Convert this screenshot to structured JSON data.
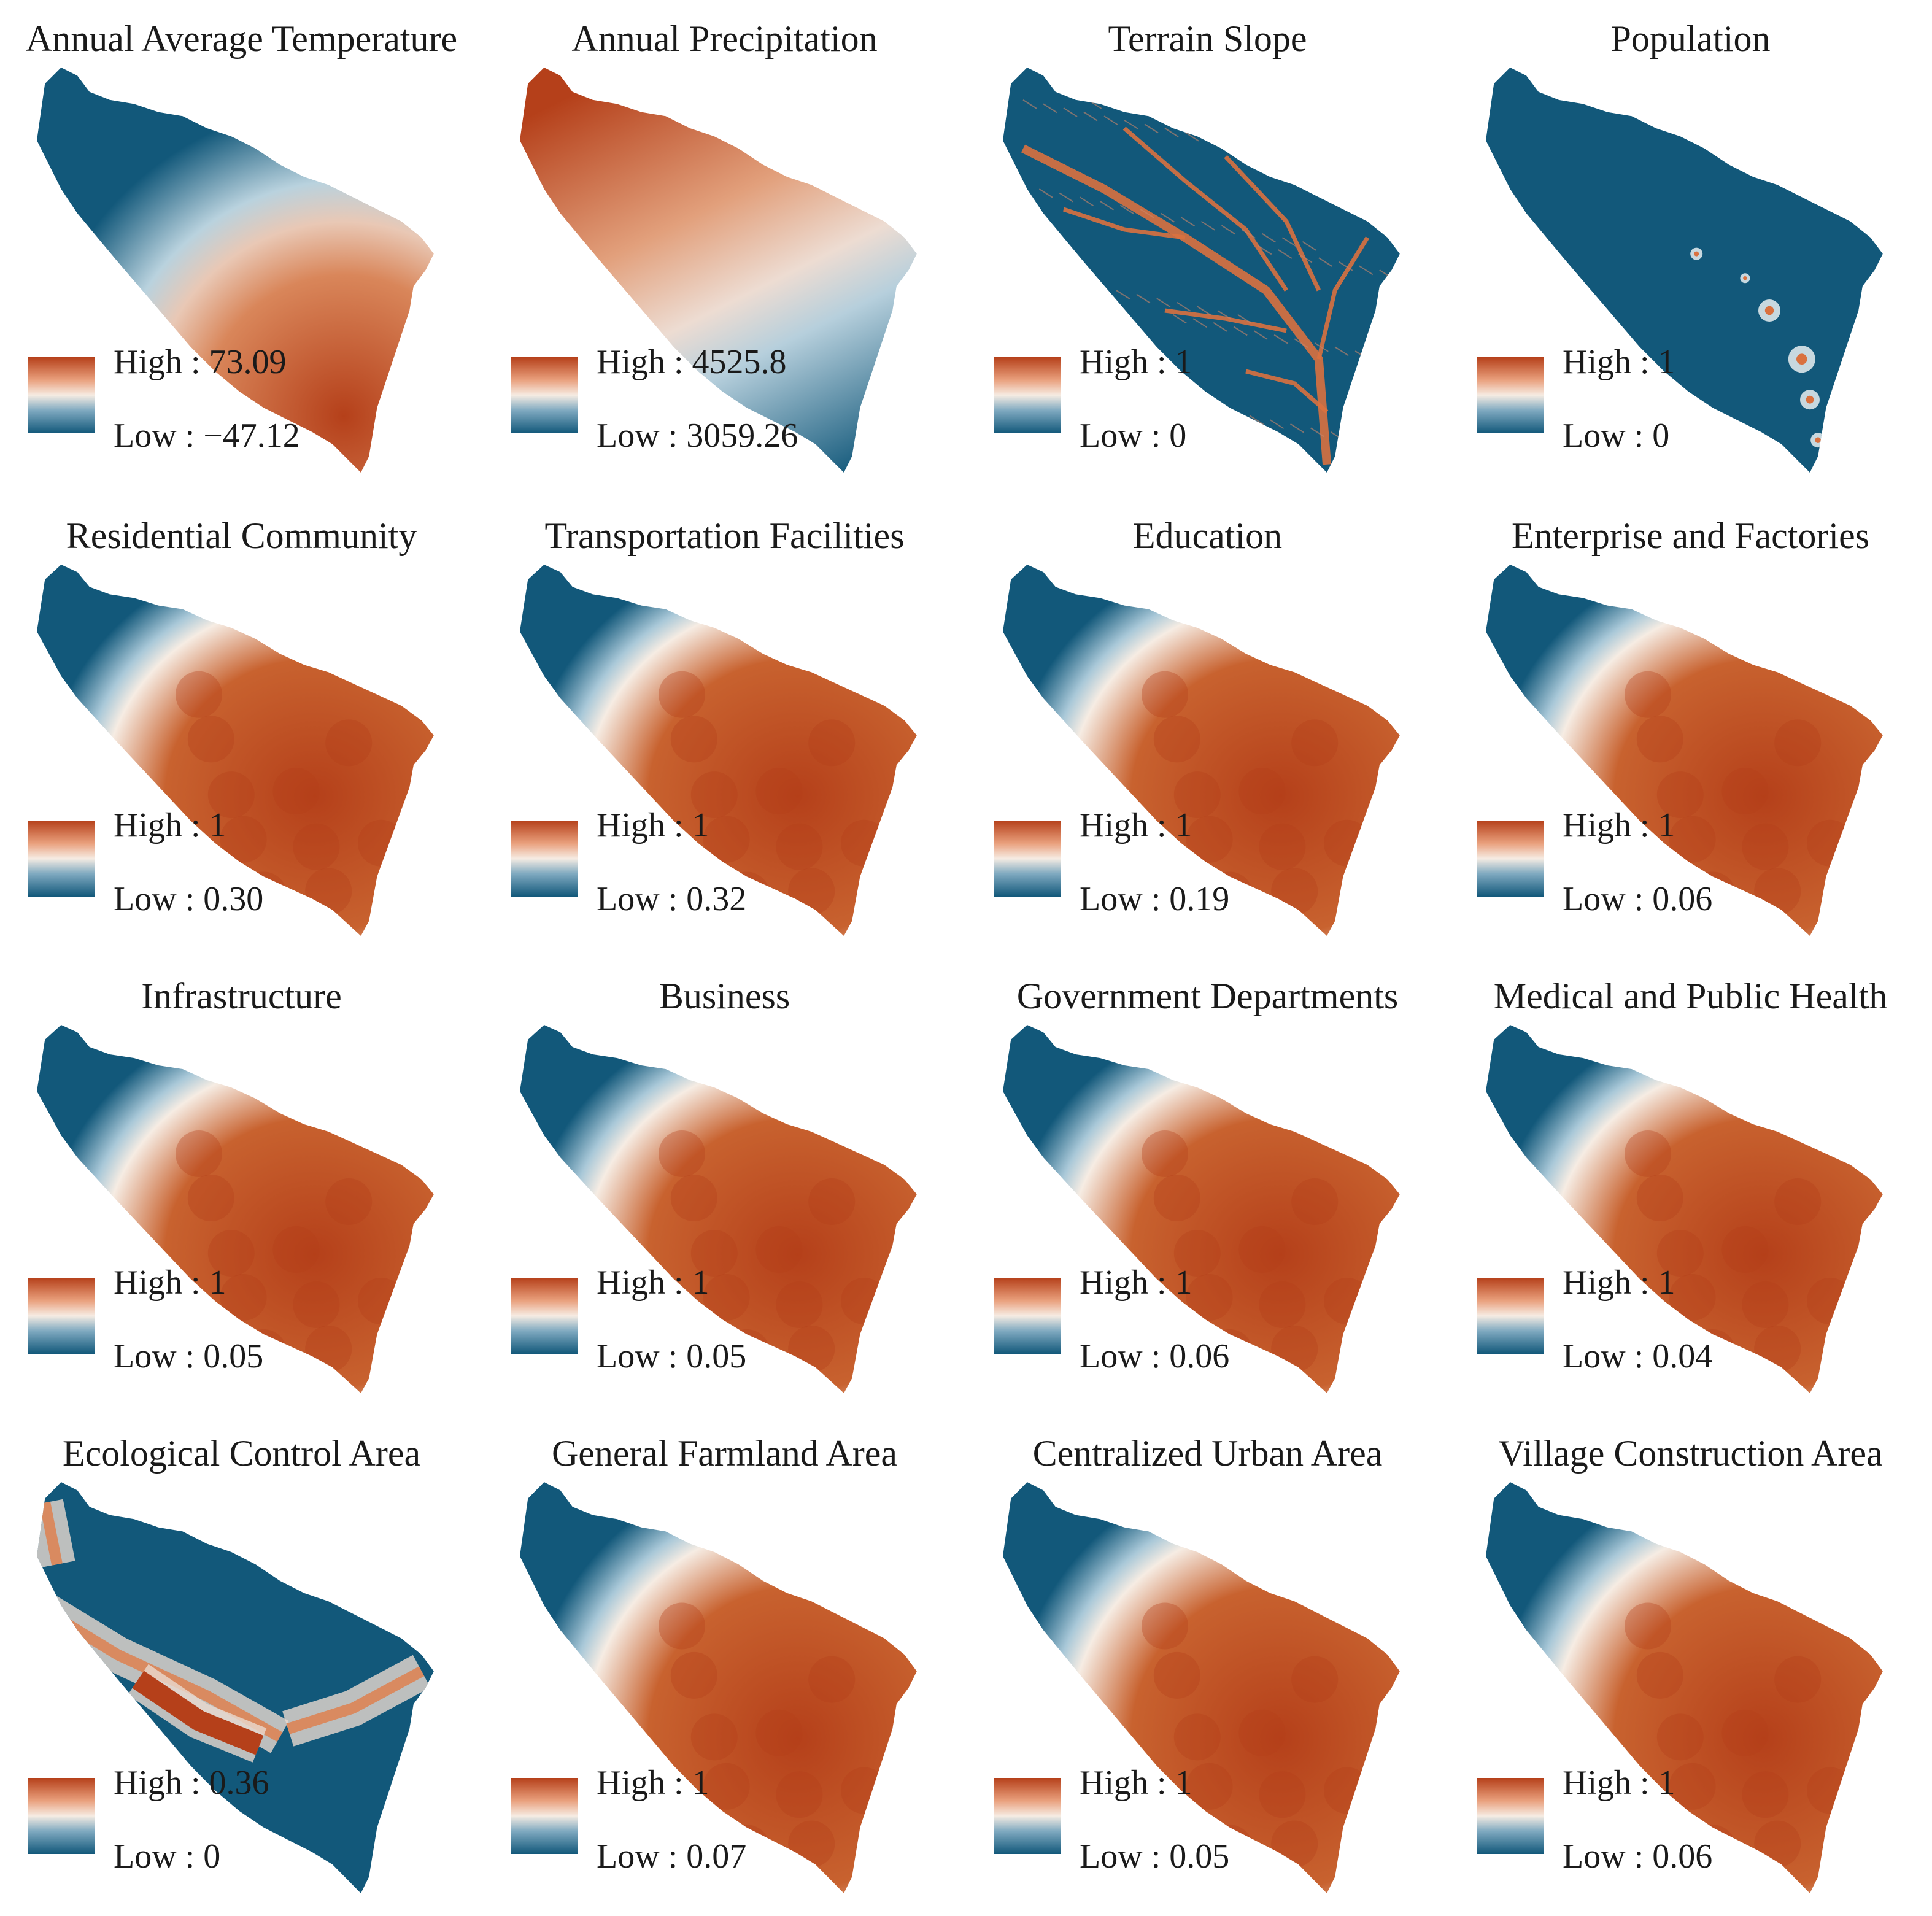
{
  "colors": {
    "high": "#b5401a",
    "mid": "#f6ece3",
    "low": "#12587a"
  },
  "panels": [
    {
      "title": "Annual Average Temperature",
      "high": "High : 73.09",
      "low": "Low : −47.12",
      "pattern": "temperature"
    },
    {
      "title": "Annual Precipitation",
      "high": "High : 4525.8",
      "low": "Low : 3059.26",
      "pattern": "precipitation"
    },
    {
      "title": "Terrain Slope",
      "high": "High : 1",
      "low": "Low : 0",
      "pattern": "slope"
    },
    {
      "title": "Population",
      "high": "High : 1",
      "low": "Low : 0",
      "pattern": "population"
    },
    {
      "title": "Residential Community",
      "high": "High : 1",
      "low": "Low : 0.30",
      "pattern": "distance"
    },
    {
      "title": "Transportation Facilities",
      "high": "High : 1",
      "low": "Low : 0.32",
      "pattern": "distance"
    },
    {
      "title": "Education",
      "high": "High : 1",
      "low": "Low : 0.19",
      "pattern": "distance"
    },
    {
      "title": "Enterprise and Factories",
      "high": "High : 1",
      "low": "Low : 0.06",
      "pattern": "distance"
    },
    {
      "title": "Infrastructure",
      "high": "High : 1",
      "low": "Low : 0.05",
      "pattern": "distance"
    },
    {
      "title": "Business",
      "high": "High : 1",
      "low": "Low : 0.05",
      "pattern": "distance"
    },
    {
      "title": "Government Departments",
      "high": "High : 1",
      "low": "Low : 0.06",
      "pattern": "distance"
    },
    {
      "title": "Medical and Public Health",
      "high": "High : 1",
      "low": "Low : 0.04",
      "pattern": "distance"
    },
    {
      "title": "Ecological Control Area",
      "high": "High : 0.36",
      "low": "Low : 0",
      "pattern": "ecological"
    },
    {
      "title": "General Farmland Area",
      "high": "High : 1",
      "low": "Low : 0.07",
      "pattern": "distance"
    },
    {
      "title": "Centralized Urban Area",
      "high": "High : 1",
      "low": "Low : 0.05",
      "pattern": "distance"
    },
    {
      "title": "Village Construction Area",
      "high": "High : 1",
      "low": "Low : 0.06",
      "pattern": "distance"
    }
  ]
}
